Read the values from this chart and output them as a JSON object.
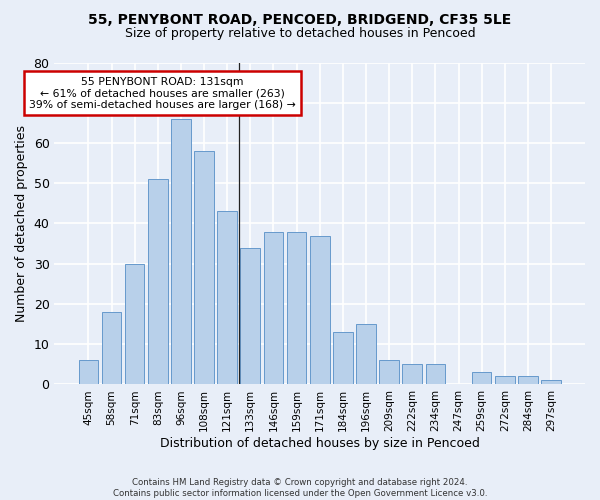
{
  "title_line1": "55, PENYBONT ROAD, PENCOED, BRIDGEND, CF35 5LE",
  "title_line2": "Size of property relative to detached houses in Pencoed",
  "xlabel": "Distribution of detached houses by size in Pencoed",
  "ylabel": "Number of detached properties",
  "categories": [
    "45sqm",
    "58sqm",
    "71sqm",
    "83sqm",
    "96sqm",
    "108sqm",
    "121sqm",
    "133sqm",
    "146sqm",
    "159sqm",
    "171sqm",
    "184sqm",
    "196sqm",
    "209sqm",
    "222sqm",
    "234sqm",
    "247sqm",
    "259sqm",
    "272sqm",
    "284sqm",
    "297sqm"
  ],
  "values": [
    6,
    18,
    30,
    51,
    66,
    58,
    43,
    34,
    38,
    38,
    37,
    13,
    15,
    6,
    5,
    5,
    0,
    3,
    2,
    2,
    1
  ],
  "bar_color": "#b8d0ea",
  "bar_edge_color": "#6699cc",
  "ylim": [
    0,
    80
  ],
  "yticks": [
    0,
    10,
    20,
    30,
    40,
    50,
    60,
    70,
    80
  ],
  "vline_x": 6.5,
  "annotation_title": "55 PENYBONT ROAD: 131sqm",
  "annotation_line2": "← 61% of detached houses are smaller (263)",
  "annotation_line3": "39% of semi-detached houses are larger (168) →",
  "annotation_box_facecolor": "#ffffff",
  "annotation_box_edgecolor": "#cc0000",
  "footer_line1": "Contains HM Land Registry data © Crown copyright and database right 2024.",
  "footer_line2": "Contains public sector information licensed under the Open Government Licence v3.0.",
  "background_color": "#e8eef8",
  "grid_color": "#ffffff",
  "title_fontsize": 10,
  "subtitle_fontsize": 9,
  "bar_width": 0.85
}
